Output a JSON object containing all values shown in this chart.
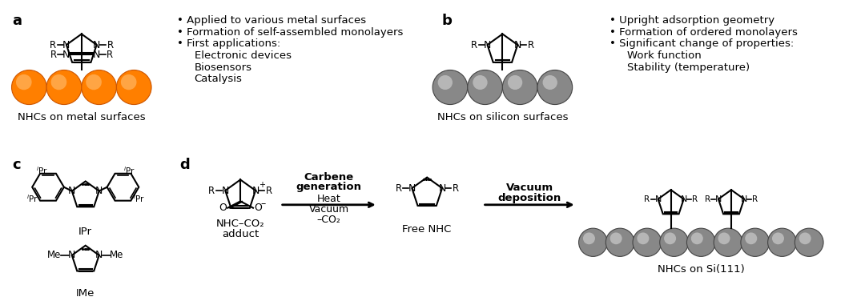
{
  "bg_color": "#ffffff",
  "label_a": "a",
  "label_b": "b",
  "label_c": "c",
  "label_d": "d",
  "label_fontsize": 13,
  "label_fontweight": "bold",
  "text_fontsize": 9.5,
  "caption_fontsize": 9.5,
  "bullet_a_lines": [
    "• Applied to various metal surfaces",
    "• Formation of self-assembled monolayers",
    "• First applications:",
    "Electronic devices",
    "Biosensors",
    "Catalysis"
  ],
  "bullet_b_lines": [
    "• Upright adsorption geometry",
    "• Formation of ordered monolayers",
    "• Significant change of properties:",
    "Work function",
    "Stability (temperature)"
  ],
  "caption_a": "NHCs on metal surfaces",
  "caption_b": "NHCs on silicon surfaces",
  "caption_nhcco2": "NHC–CO₂",
  "caption_adduct": "adduct",
  "caption_freenhc": "Free NHC",
  "caption_nhcsi": "NHCs on Si(111)",
  "arrow1_label1": "Carbene",
  "arrow1_label2": "generation",
  "arrow1_sub1": "Heat",
  "arrow1_sub2": "Vacuum",
  "arrow1_sub3": "–CO₂",
  "arrow2_label1": "Vacuum",
  "arrow2_label2": "deposition",
  "orange_face": "#FF7700",
  "orange_edge": "#CC5500",
  "gray_face": "#808080",
  "gray_edge": "#404040"
}
